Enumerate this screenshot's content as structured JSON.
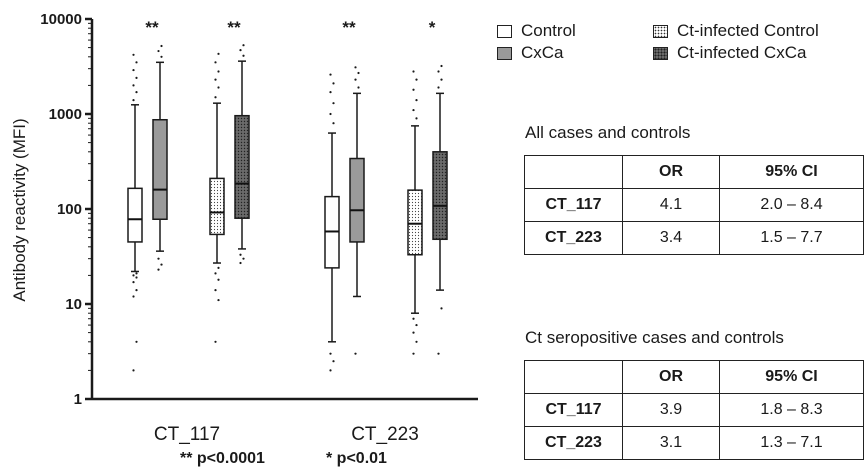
{
  "chart_data": {
    "type": "box",
    "ylabel": "Antibody reactivity (MFI)",
    "yscale": "log",
    "ylim": [
      1,
      10000
    ],
    "yticks": [
      "1",
      "10",
      "100",
      "1000",
      "10000"
    ],
    "categories": [
      "CT_117",
      "CT_223"
    ],
    "series": [
      {
        "name": "Control",
        "color": "#ffffff",
        "pattern": "none"
      },
      {
        "name": "CxCa",
        "color": "#9a9a9a",
        "pattern": "none"
      },
      {
        "name": "Ct-infected Control",
        "color": "#ffffff",
        "pattern": "dots"
      },
      {
        "name": "Ct-infected CxCa",
        "color": "#6b6b6b",
        "pattern": "dots"
      }
    ],
    "boxes": [
      {
        "category": "CT_117",
        "series": "Control",
        "q1": 45,
        "median": 78,
        "q3": 165,
        "whisker_low": 22,
        "whisker_high": 1250,
        "outliers": [
          2,
          4,
          12,
          14,
          17,
          19,
          20,
          21,
          1400,
          1700,
          2000,
          2400,
          2900,
          3500,
          4200
        ]
      },
      {
        "category": "CT_117",
        "series": "CxCa",
        "q1": 78,
        "median": 160,
        "q3": 870,
        "whisker_low": 36,
        "whisker_high": 3500,
        "outliers": [
          23,
          26,
          30,
          4000,
          4600,
          5200
        ]
      },
      {
        "category": "CT_117",
        "series": "Ct-infected Control",
        "q1": 54,
        "median": 92,
        "q3": 210,
        "whisker_low": 27,
        "whisker_high": 1300,
        "outliers": [
          4,
          11,
          14,
          18,
          21,
          24,
          1500,
          1900,
          2300,
          2800,
          3500,
          4300
        ]
      },
      {
        "category": "CT_117",
        "series": "Ct-infected CxCa",
        "q1": 80,
        "median": 185,
        "q3": 960,
        "whisker_low": 38,
        "whisker_high": 3600,
        "outliers": [
          27,
          30,
          33,
          4100,
          4700,
          5300
        ]
      },
      {
        "category": "CT_223",
        "series": "Control",
        "q1": 24,
        "median": 58,
        "q3": 135,
        "whisker_low": 4,
        "whisker_high": 630,
        "outliers": [
          2,
          2.5,
          3,
          800,
          1000,
          1300,
          1700,
          2100,
          2600
        ]
      },
      {
        "category": "CT_223",
        "series": "CxCa",
        "q1": 45,
        "median": 97,
        "q3": 340,
        "whisker_low": 12,
        "whisker_high": 1650,
        "outliers": [
          3,
          1900,
          2300,
          2700,
          3100
        ]
      },
      {
        "category": "CT_223",
        "series": "Ct-infected Control",
        "q1": 33,
        "median": 70,
        "q3": 158,
        "whisker_low": 8,
        "whisker_high": 750,
        "outliers": [
          3,
          4,
          5,
          6,
          7,
          900,
          1100,
          1400,
          1800,
          2300,
          2800
        ]
      },
      {
        "category": "CT_223",
        "series": "Ct-infected CxCa",
        "q1": 48,
        "median": 108,
        "q3": 400,
        "whisker_low": 14,
        "whisker_high": 1650,
        "outliers": [
          3,
          9,
          1900,
          2300,
          2800,
          3200
        ]
      }
    ],
    "significance": [
      {
        "category": "CT_117",
        "pair": "Control vs CxCa",
        "label": "**"
      },
      {
        "category": "CT_117",
        "pair": "Ct-infected Control vs Ct-infected CxCa",
        "label": "**"
      },
      {
        "category": "CT_223",
        "pair": "Control vs CxCa",
        "label": "**"
      },
      {
        "category": "CT_223",
        "pair": "Ct-infected Control vs Ct-infected CxCa",
        "label": "*"
      }
    ],
    "footnotes": [
      "** p<0.0001",
      "* p<0.01"
    ],
    "legend_position": "top-right"
  },
  "tables": [
    {
      "title": "All cases and controls",
      "header": [
        "",
        "OR",
        "95% CI"
      ],
      "rows": [
        [
          "CT_117",
          "4.1",
          "2.0 – 8.4"
        ],
        [
          "CT_223",
          "3.4",
          "1.5 – 7.7"
        ]
      ]
    },
    {
      "title": "Ct seropositive cases and controls",
      "header": [
        "",
        "OR",
        "95% CI"
      ],
      "rows": [
        [
          "CT_117",
          "3.9",
          "1.8 – 8.3"
        ],
        [
          "CT_223",
          "3.1",
          "1.3 – 7.1"
        ]
      ]
    }
  ]
}
